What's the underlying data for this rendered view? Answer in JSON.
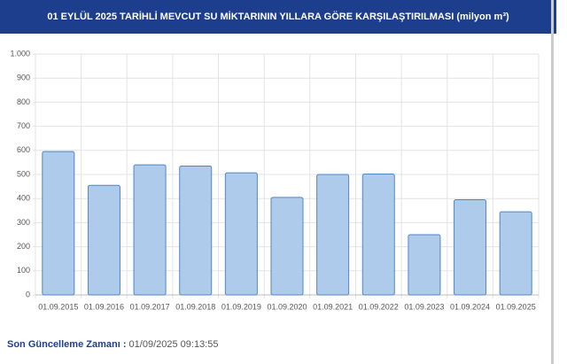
{
  "chart_data": {
    "type": "bar",
    "title": "01 EYLÜL 2025 TARİHLİ MEVCUT SU MİKTARININ YILLARA GÖRE KARŞILAŞTIRILMASI (milyon m³)",
    "categories": [
      "01.09.2015",
      "01.09.2016",
      "01.09.2017",
      "01.09.2018",
      "01.09.2019",
      "01.09.2020",
      "01.09.2021",
      "01.09.2022",
      "01.09.2023",
      "01.09.2024",
      "01.09.2025"
    ],
    "values": [
      595,
      455,
      540,
      535,
      507,
      405,
      500,
      502,
      250,
      395,
      345
    ],
    "color": "#aecbeb",
    "ylim": [
      0,
      1000
    ],
    "yticks": [
      0,
      100,
      200,
      300,
      400,
      500,
      600,
      700,
      800,
      900,
      {
        "value": 1000,
        "label": "1.000"
      }
    ],
    "grid": true
  },
  "footer": {
    "label": "Son Güncelleme Zamanı :",
    "value": "01/09/2025 09:13:55"
  }
}
